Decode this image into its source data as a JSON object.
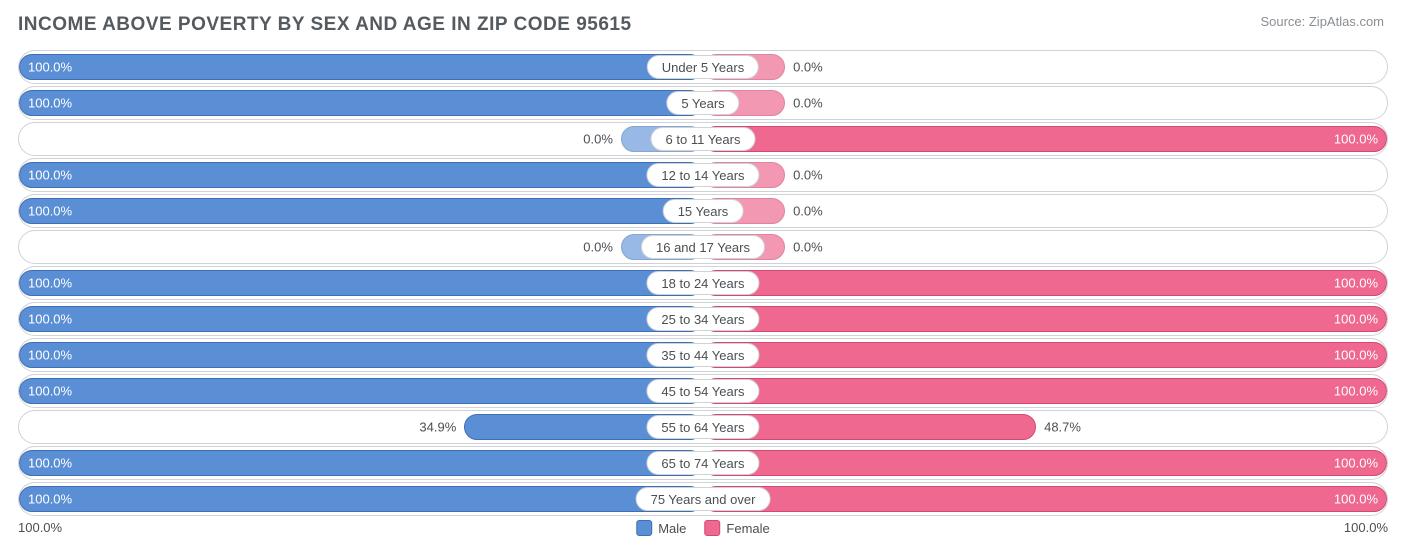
{
  "title": "INCOME ABOVE POVERTY BY SEX AND AGE IN ZIP CODE 95615",
  "source": "Source: ZipAtlas.com",
  "colors": {
    "male_fill": "#5a8fd6",
    "male_border": "#3f6fb3",
    "female_fill": "#ee6890",
    "female_border": "#d44872",
    "row_border": "#cfd3d7",
    "text": "#4a4f54",
    "title": "#555a5f",
    "source_text": "#8a8f94",
    "background": "#ffffff"
  },
  "axis": {
    "left_label": "100.0%",
    "right_label": "100.0%",
    "max": 100.0
  },
  "legend": {
    "male": "Male",
    "female": "Female"
  },
  "min_bar_pct": 12,
  "rows": [
    {
      "category": "Under 5 Years",
      "male": 100.0,
      "female": 0.0,
      "male_label": "100.0%",
      "female_label": "0.0%"
    },
    {
      "category": "5 Years",
      "male": 100.0,
      "female": 0.0,
      "male_label": "100.0%",
      "female_label": "0.0%"
    },
    {
      "category": "6 to 11 Years",
      "male": 0.0,
      "female": 100.0,
      "male_label": "0.0%",
      "female_label": "100.0%"
    },
    {
      "category": "12 to 14 Years",
      "male": 100.0,
      "female": 0.0,
      "male_label": "100.0%",
      "female_label": "0.0%"
    },
    {
      "category": "15 Years",
      "male": 100.0,
      "female": 0.0,
      "male_label": "100.0%",
      "female_label": "0.0%"
    },
    {
      "category": "16 and 17 Years",
      "male": 0.0,
      "female": 0.0,
      "male_label": "0.0%",
      "female_label": "0.0%"
    },
    {
      "category": "18 to 24 Years",
      "male": 100.0,
      "female": 100.0,
      "male_label": "100.0%",
      "female_label": "100.0%"
    },
    {
      "category": "25 to 34 Years",
      "male": 100.0,
      "female": 100.0,
      "male_label": "100.0%",
      "female_label": "100.0%"
    },
    {
      "category": "35 to 44 Years",
      "male": 100.0,
      "female": 100.0,
      "male_label": "100.0%",
      "female_label": "100.0%"
    },
    {
      "category": "45 to 54 Years",
      "male": 100.0,
      "female": 100.0,
      "male_label": "100.0%",
      "female_label": "100.0%"
    },
    {
      "category": "55 to 64 Years",
      "male": 34.9,
      "female": 48.7,
      "male_label": "34.9%",
      "female_label": "48.7%"
    },
    {
      "category": "65 to 74 Years",
      "male": 100.0,
      "female": 100.0,
      "male_label": "100.0%",
      "female_label": "100.0%"
    },
    {
      "category": "75 Years and over",
      "male": 100.0,
      "female": 100.0,
      "male_label": "100.0%",
      "female_label": "100.0%"
    }
  ]
}
